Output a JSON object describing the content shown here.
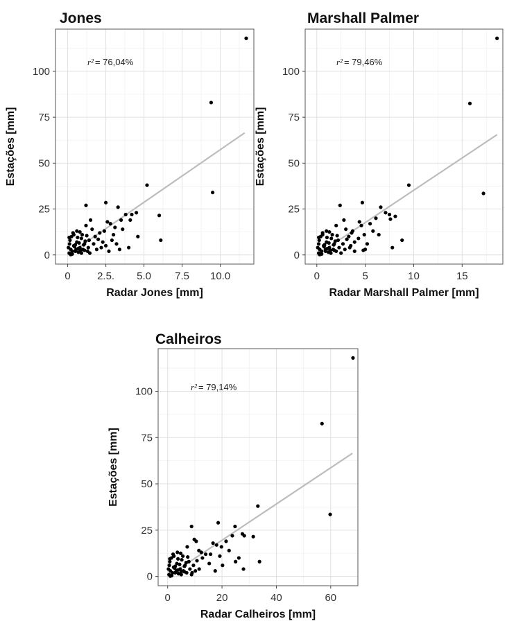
{
  "chart_data": [
    {
      "type": "scatter",
      "title": "Jones",
      "xlabel": "Radar Jones [mm]",
      "ylabel": "Estações [mm]",
      "annotation": {
        "r2_label": "r²",
        "r2_value": "= 76,04%"
      },
      "xlim": [
        -0.8,
        12.2
      ],
      "ylim": [
        -5,
        123
      ],
      "xticks": [
        {
          "v": 0,
          "label": "0"
        },
        {
          "v": 2.5,
          "label": "2.5."
        },
        {
          "v": 5.0,
          "label": "5.0"
        },
        {
          "v": 7.5,
          "label": "7.5"
        },
        {
          "v": 10.0,
          "label": "10.0"
        }
      ],
      "yticks": [
        {
          "v": 0,
          "label": "0"
        },
        {
          "v": 25,
          "label": "25"
        },
        {
          "v": 50,
          "label": "50"
        },
        {
          "v": 75,
          "label": "75"
        },
        {
          "v": 100,
          "label": "100"
        }
      ],
      "grid": true,
      "fit_line": {
        "x": [
          0,
          11.6
        ],
        "y": [
          0,
          66.5
        ]
      },
      "points": [
        [
          11.7,
          118
        ],
        [
          9.4,
          83
        ],
        [
          9.5,
          34
        ],
        [
          5.2,
          38
        ],
        [
          6.0,
          21.5
        ],
        [
          6.1,
          8
        ],
        [
          4.2,
          22
        ],
        [
          4.5,
          23
        ],
        [
          3.3,
          26
        ],
        [
          2.5,
          28.5
        ],
        [
          1.2,
          27
        ],
        [
          1.5,
          19
        ],
        [
          1.6,
          14
        ],
        [
          1.8,
          10
        ],
        [
          2.1,
          12
        ],
        [
          2.3,
          7
        ],
        [
          2.6,
          18
        ],
        [
          2.8,
          17
        ],
        [
          3.0,
          11
        ],
        [
          3.2,
          6
        ],
        [
          3.5,
          19
        ],
        [
          3.6,
          14
        ],
        [
          3.8,
          22
        ],
        [
          4.0,
          4
        ],
        [
          4.1,
          19
        ],
        [
          4.6,
          10
        ],
        [
          3.4,
          3
        ],
        [
          2.9,
          8
        ],
        [
          3.1,
          15
        ],
        [
          0.1,
          1
        ],
        [
          0.2,
          3
        ],
        [
          0.3,
          0.5
        ],
        [
          0.4,
          5
        ],
        [
          0.5,
          2
        ],
        [
          0.6,
          7
        ],
        [
          0.7,
          1.5
        ],
        [
          0.8,
          4
        ],
        [
          0.9,
          9
        ],
        [
          1.0,
          3
        ],
        [
          1.1,
          6
        ],
        [
          1.3,
          2
        ],
        [
          1.4,
          8
        ],
        [
          0.15,
          8
        ],
        [
          0.25,
          10
        ],
        [
          0.35,
          12
        ],
        [
          0.45,
          4.5
        ],
        [
          0.55,
          3
        ],
        [
          0.65,
          9.5
        ],
        [
          0.75,
          6.5
        ],
        [
          0.85,
          2.5
        ],
        [
          0.95,
          11
        ],
        [
          1.05,
          5.5
        ],
        [
          1.15,
          7.5
        ],
        [
          1.25,
          10.5
        ],
        [
          1.35,
          4
        ],
        [
          1.45,
          1
        ],
        [
          1.7,
          6
        ],
        [
          1.9,
          3
        ],
        [
          2.0,
          8.5
        ],
        [
          2.2,
          4
        ],
        [
          2.4,
          13
        ],
        [
          0.05,
          4
        ],
        [
          0.12,
          6
        ],
        [
          0.2,
          0.2
        ],
        [
          0.3,
          2
        ],
        [
          0.5,
          5.5
        ],
        [
          0.7,
          3.5
        ],
        [
          0.9,
          1
        ],
        [
          1.1,
          2.5
        ],
        [
          0.4,
          11
        ],
        [
          0.6,
          13
        ],
        [
          0.8,
          12.5
        ],
        [
          1.2,
          16
        ],
        [
          0.1,
          9.5
        ],
        [
          2.7,
          2
        ],
        [
          2.5,
          5
        ]
      ]
    },
    {
      "type": "scatter",
      "title": "Marshall Palmer",
      "xlabel": "Radar Marshall Palmer [mm]",
      "ylabel": "Estações [mm]",
      "annotation": {
        "r2_label": "r²",
        "r2_value": "= 79,46%"
      },
      "xlim": [
        -1.2,
        19.2
      ],
      "ylim": [
        -5,
        123
      ],
      "xticks": [
        {
          "v": 0,
          "label": "0"
        },
        {
          "v": 5,
          "label": "5"
        },
        {
          "v": 10,
          "label": "10"
        },
        {
          "v": 15,
          "label": "15"
        }
      ],
      "yticks": [
        {
          "v": 0,
          "label": "0"
        },
        {
          "v": 25,
          "label": "25"
        },
        {
          "v": 50,
          "label": "50"
        },
        {
          "v": 75,
          "label": "75"
        },
        {
          "v": 100,
          "label": "100"
        }
      ],
      "grid": true,
      "fit_line": {
        "x": [
          0,
          18.6
        ],
        "y": [
          0,
          65.5
        ]
      },
      "points": [
        [
          18.6,
          118
        ],
        [
          15.8,
          82.5
        ],
        [
          17.2,
          33.5
        ],
        [
          9.5,
          38
        ],
        [
          8.1,
          21
        ],
        [
          7.5,
          22
        ],
        [
          7.6,
          19.5
        ],
        [
          6.6,
          26
        ],
        [
          7.1,
          23
        ],
        [
          4.7,
          28.5
        ],
        [
          2.4,
          27
        ],
        [
          2.8,
          19
        ],
        [
          3.0,
          14
        ],
        [
          3.3,
          10
        ],
        [
          3.6,
          12
        ],
        [
          3.9,
          7
        ],
        [
          4.4,
          18
        ],
        [
          4.6,
          16
        ],
        [
          4.9,
          11
        ],
        [
          5.2,
          6
        ],
        [
          5.5,
          17
        ],
        [
          5.8,
          13
        ],
        [
          6.1,
          20
        ],
        [
          7.8,
          4
        ],
        [
          8.8,
          8
        ],
        [
          6.4,
          11
        ],
        [
          5.0,
          3
        ],
        [
          4.3,
          9
        ],
        [
          4.8,
          2.5
        ],
        [
          0.2,
          1
        ],
        [
          0.3,
          3
        ],
        [
          0.5,
          0.5
        ],
        [
          0.7,
          5
        ],
        [
          0.9,
          2
        ],
        [
          1.0,
          7
        ],
        [
          1.2,
          1.5
        ],
        [
          1.3,
          4
        ],
        [
          1.5,
          9
        ],
        [
          1.7,
          3
        ],
        [
          1.8,
          6
        ],
        [
          2.0,
          2
        ],
        [
          2.2,
          8
        ],
        [
          0.25,
          8
        ],
        [
          0.4,
          10
        ],
        [
          0.6,
          12
        ],
        [
          0.75,
          4.5
        ],
        [
          0.9,
          3
        ],
        [
          1.05,
          9.5
        ],
        [
          1.25,
          6.5
        ],
        [
          1.4,
          2.5
        ],
        [
          1.6,
          11
        ],
        [
          1.75,
          5.5
        ],
        [
          1.9,
          7.5
        ],
        [
          2.1,
          10.5
        ],
        [
          2.3,
          4
        ],
        [
          2.5,
          1
        ],
        [
          2.7,
          6
        ],
        [
          2.9,
          3
        ],
        [
          3.1,
          8.5
        ],
        [
          3.4,
          4
        ],
        [
          3.7,
          13
        ],
        [
          0.1,
          4
        ],
        [
          0.2,
          6
        ],
        [
          0.3,
          0.2
        ],
        [
          0.5,
          2
        ],
        [
          0.8,
          5.5
        ],
        [
          1.1,
          3.5
        ],
        [
          1.45,
          1
        ],
        [
          1.8,
          2.5
        ],
        [
          0.6,
          11
        ],
        [
          1.0,
          13
        ],
        [
          1.3,
          12.5
        ],
        [
          2.0,
          16
        ],
        [
          0.2,
          9.5
        ],
        [
          3.9,
          2
        ],
        [
          3.5,
          5
        ]
      ]
    },
    {
      "type": "scatter",
      "title": "Calheiros",
      "xlabel": "Radar Calheiros [mm]",
      "ylabel": "Estações [mm]",
      "annotation": {
        "r2_label": "r²",
        "r2_value": "= 79,14%"
      },
      "xlim": [
        -3.5,
        70
      ],
      "ylim": [
        -5,
        123
      ],
      "xticks": [
        {
          "v": 0,
          "label": "0"
        },
        {
          "v": 20,
          "label": "20"
        },
        {
          "v": 40,
          "label": "40"
        },
        {
          "v": 60,
          "label": "60"
        }
      ],
      "yticks": [
        {
          "v": 0,
          "label": "0"
        },
        {
          "v": 25,
          "label": "25"
        },
        {
          "v": 50,
          "label": "50"
        },
        {
          "v": 75,
          "label": "75"
        },
        {
          "v": 100,
          "label": "100"
        }
      ],
      "grid": true,
      "fit_line": {
        "x": [
          0,
          68
        ],
        "y": [
          0,
          66.5
        ]
      },
      "points": [
        [
          68.2,
          118
        ],
        [
          56.8,
          82.5
        ],
        [
          59.8,
          33.5
        ],
        [
          33.2,
          38
        ],
        [
          31.5,
          21.5
        ],
        [
          33.8,
          8
        ],
        [
          27.5,
          23
        ],
        [
          28.2,
          22
        ],
        [
          24.8,
          27
        ],
        [
          18.6,
          29
        ],
        [
          8.8,
          27
        ],
        [
          10.5,
          19
        ],
        [
          11.5,
          14
        ],
        [
          12.8,
          10
        ],
        [
          14.0,
          12
        ],
        [
          15.3,
          7
        ],
        [
          16.7,
          18
        ],
        [
          18.0,
          17
        ],
        [
          19.2,
          11
        ],
        [
          20.2,
          6
        ],
        [
          21.5,
          19
        ],
        [
          22.6,
          14
        ],
        [
          23.8,
          22
        ],
        [
          26.2,
          10
        ],
        [
          27.9,
          4
        ],
        [
          25.0,
          8
        ],
        [
          17.5,
          3
        ],
        [
          15.8,
          12
        ],
        [
          19.8,
          16
        ],
        [
          0.5,
          1
        ],
        [
          1.0,
          3
        ],
        [
          1.5,
          0.5
        ],
        [
          2.2,
          5
        ],
        [
          2.8,
          2
        ],
        [
          3.4,
          7
        ],
        [
          4.0,
          1.5
        ],
        [
          4.6,
          4
        ],
        [
          5.2,
          9
        ],
        [
          5.8,
          3
        ],
        [
          6.4,
          6
        ],
        [
          7.0,
          2
        ],
        [
          7.8,
          8
        ],
        [
          0.8,
          8
        ],
        [
          1.4,
          10
        ],
        [
          2.0,
          12
        ],
        [
          2.6,
          4.5
        ],
        [
          3.2,
          3
        ],
        [
          3.8,
          9.5
        ],
        [
          4.4,
          6.5
        ],
        [
          5.0,
          2.5
        ],
        [
          5.6,
          11
        ],
        [
          6.2,
          5.5
        ],
        [
          6.8,
          7.5
        ],
        [
          7.4,
          10.5
        ],
        [
          8.2,
          4
        ],
        [
          8.8,
          1
        ],
        [
          9.5,
          6
        ],
        [
          10.2,
          3
        ],
        [
          10.8,
          8.5
        ],
        [
          11.6,
          4
        ],
        [
          12.4,
          13
        ],
        [
          0.3,
          4
        ],
        [
          0.6,
          6
        ],
        [
          1.0,
          0.2
        ],
        [
          1.8,
          2
        ],
        [
          2.8,
          5.5
        ],
        [
          3.8,
          3.5
        ],
        [
          5.0,
          1
        ],
        [
          6.2,
          2.5
        ],
        [
          2.3,
          11
        ],
        [
          3.6,
          13
        ],
        [
          4.8,
          12.5
        ],
        [
          7.2,
          16
        ],
        [
          0.8,
          9.5
        ],
        [
          9.0,
          2
        ],
        [
          9.8,
          20
        ]
      ]
    }
  ]
}
